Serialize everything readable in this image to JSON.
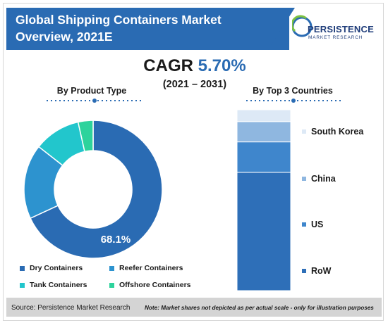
{
  "header": {
    "title_line1": "Global Shipping Containers Market",
    "title_line2": "Overview, 2021E"
  },
  "logo": {
    "name": "PERSISTENCE",
    "tagline": "MARKET RESEARCH"
  },
  "cagr": {
    "label": "CAGR",
    "value": "5.70%",
    "period": "(2021 – 2031)"
  },
  "footer": {
    "source": "Source: Persistence Market Research",
    "note": "Note: Market shares not depicted as per actual scale - only for illustration purposes"
  },
  "colors": {
    "brand_blue": "#2a6bb3",
    "dry": "#2a6bb3",
    "reefer": "#2d93cf",
    "tank": "#22c6cc",
    "offshore": "#2dd39c",
    "row": "#2e6fb8",
    "us": "#3f86cc",
    "china": "#8fb7e0",
    "south_korea": "#dde9f6"
  },
  "chart_data": [
    {
      "type": "pie",
      "title": "By Product Type",
      "donut": true,
      "categories": [
        "Dry Containers",
        "Reefer Containers",
        "Tank Containers",
        "Offshore Containers"
      ],
      "values": [
        68.1,
        17.5,
        10.9,
        3.5
      ],
      "data_labels": [
        "68.1%",
        "",
        "",
        ""
      ],
      "legend_position": "bottom"
    },
    {
      "type": "bar",
      "stacked": true,
      "title": "By Top 3 Countries",
      "categories": [
        "RoW",
        "US",
        "China",
        "South Korea"
      ],
      "values": [
        70,
        18,
        12,
        7
      ],
      "legend_position": "right"
    }
  ]
}
